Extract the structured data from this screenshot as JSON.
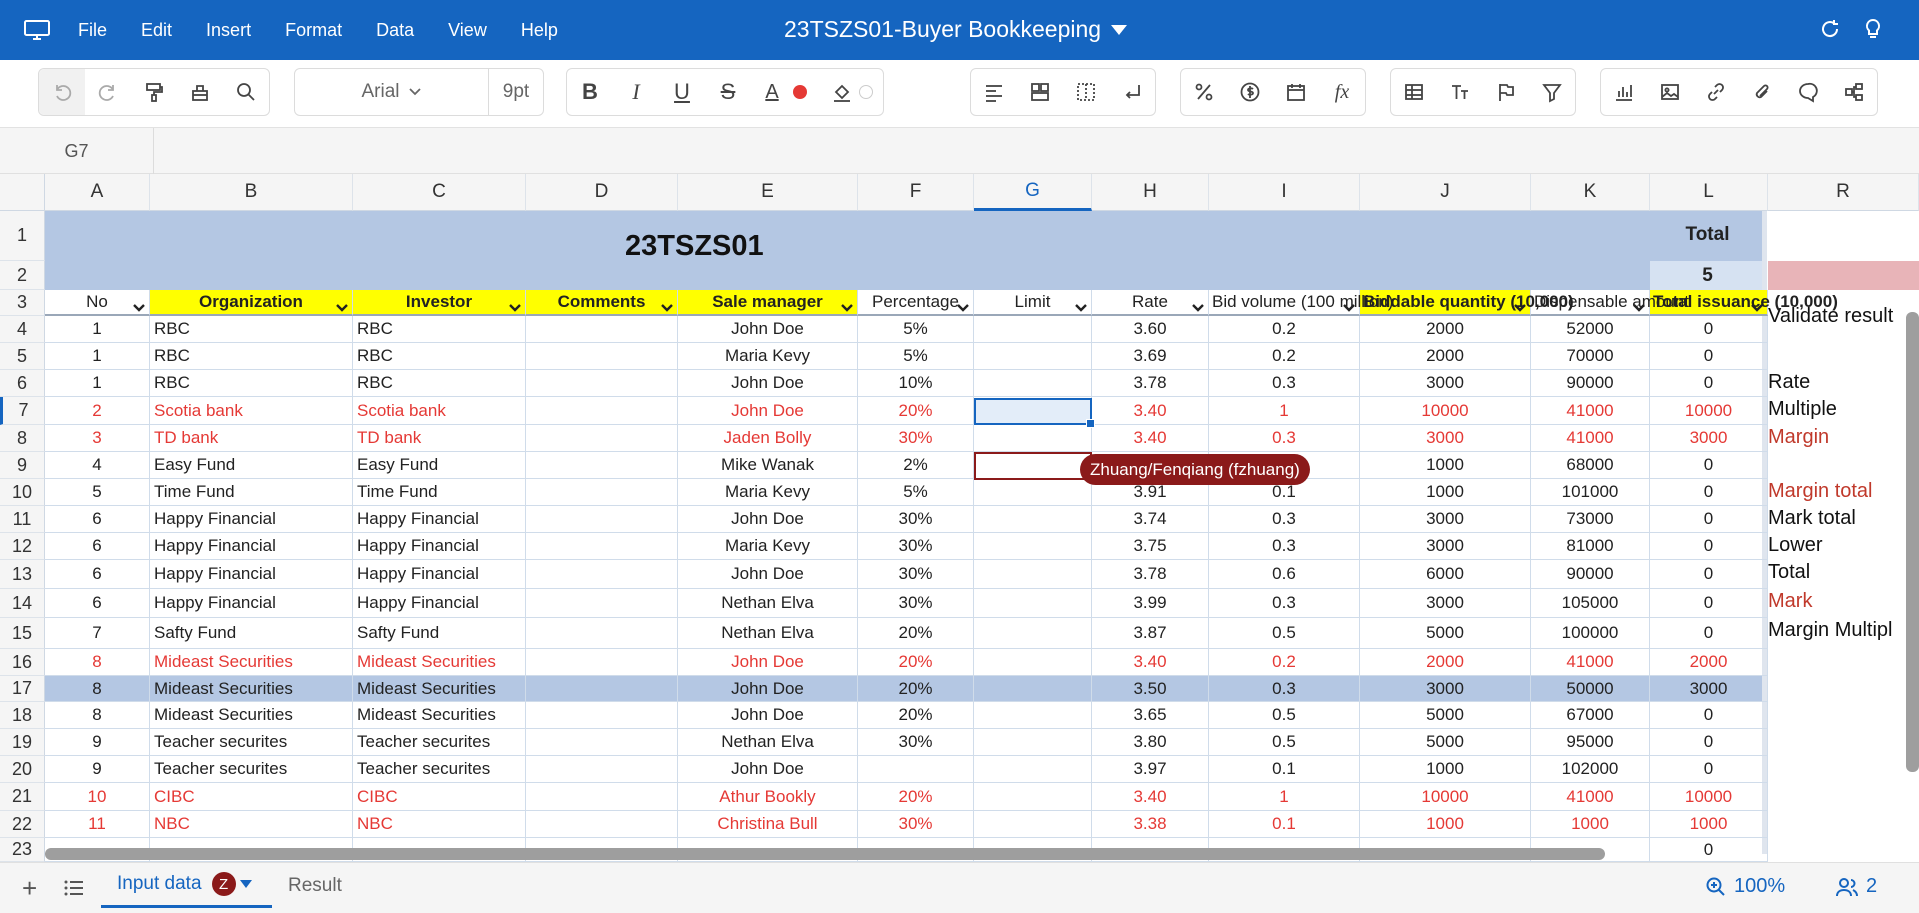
{
  "app": {
    "title": "23TSZS01-Buyer Bookkeeping",
    "menu": [
      "File",
      "Edit",
      "Insert",
      "Format",
      "Data",
      "View",
      "Help"
    ]
  },
  "toolbar": {
    "font_name": "Arial",
    "font_size": "9pt",
    "icons": [
      "undo-icon",
      "redo-icon",
      "format-painter-icon",
      "clear-format-icon",
      "search-icon",
      "bold-icon",
      "italic-icon",
      "underline-icon",
      "strikethrough-icon",
      "font-color-icon",
      "fill-color-icon",
      "align-icon",
      "merge-icon",
      "border-icon",
      "wrap-icon",
      "percent-icon",
      "currency-icon",
      "date-icon",
      "function-icon",
      "table-icon",
      "text-style-icon",
      "flag-icon",
      "filter-icon",
      "chart-icon",
      "image-icon",
      "link-icon",
      "attachment-icon",
      "comment-icon",
      "diagram-icon"
    ],
    "font_color": "#e53935",
    "bold_label": "B",
    "italic_label": "I",
    "underline_label": "U",
    "strike_label": "S",
    "fontcolor_label": "A",
    "fx_label": "fx"
  },
  "namebox": "G7",
  "columns": [
    "A",
    "B",
    "C",
    "D",
    "E",
    "F",
    "G",
    "H",
    "I",
    "J",
    "K",
    "L",
    "R"
  ],
  "row_numbers": [
    "1",
    "2",
    "3",
    "4",
    "5",
    "6",
    "7",
    "8",
    "9",
    "10",
    "11",
    "12",
    "13",
    "14",
    "15",
    "16",
    "17",
    "18",
    "19",
    "20",
    "21",
    "22",
    "23"
  ],
  "sheet": {
    "title": "23TSZS01",
    "total_label": "Total",
    "total_value": "5",
    "headers": [
      "No",
      "Organization",
      "Investor",
      "Comments",
      "Sale manager",
      "Percentage",
      "Limit",
      "Rate",
      "Bid volume (100 million)",
      "Biddable quantity (10,000)",
      "Dispensable amount",
      "Total issuance (10,000)"
    ],
    "rows": [
      {
        "no": "1",
        "org": "RBC",
        "inv": "RBC",
        "cm": "",
        "sm": "John Doe",
        "pct": "5%",
        "lim": "",
        "rate": "3.60",
        "bid": "0.2",
        "bq": "2000",
        "da": "52000",
        "ti": "0",
        "red": false
      },
      {
        "no": "1",
        "org": "RBC",
        "inv": "RBC",
        "cm": "",
        "sm": "Maria Kevy",
        "pct": "5%",
        "lim": "",
        "rate": "3.69",
        "bid": "0.2",
        "bq": "2000",
        "da": "70000",
        "ti": "0",
        "red": false
      },
      {
        "no": "1",
        "org": "RBC",
        "inv": "RBC",
        "cm": "",
        "sm": "John Doe",
        "pct": "10%",
        "lim": "",
        "rate": "3.78",
        "bid": "0.3",
        "bq": "3000",
        "da": "90000",
        "ti": "0",
        "red": false
      },
      {
        "no": "2",
        "org": "Scotia bank",
        "inv": "Scotia bank",
        "cm": "",
        "sm": "John Doe",
        "pct": "20%",
        "lim": "",
        "rate": "3.40",
        "bid": "1",
        "bq": "10000",
        "da": "41000",
        "ti": "10000",
        "red": true
      },
      {
        "no": "3",
        "org": "TD bank",
        "inv": "TD bank",
        "cm": "",
        "sm": "Jaden Bolly",
        "pct": "30%",
        "lim": "",
        "rate": "3.40",
        "bid": "0.3",
        "bq": "3000",
        "da": "41000",
        "ti": "3000",
        "red": true
      },
      {
        "no": "4",
        "org": "Easy Fund",
        "inv": "Easy Fund",
        "cm": "",
        "sm": "Mike Wanak",
        "pct": "2%",
        "lim": "",
        "rate": "",
        "bid": "",
        "bq": "1000",
        "da": "68000",
        "ti": "0",
        "red": false
      },
      {
        "no": "5",
        "org": "Time Fund",
        "inv": "Time Fund",
        "cm": "",
        "sm": "Maria Kevy",
        "pct": "5%",
        "lim": "",
        "rate": "3.91",
        "bid": "0.1",
        "bq": "1000",
        "da": "101000",
        "ti": "0",
        "red": false
      },
      {
        "no": "6",
        "org": "Happy Financial",
        "inv": "Happy Financial",
        "cm": "",
        "sm": "John Doe",
        "pct": "30%",
        "lim": "",
        "rate": "3.74",
        "bid": "0.3",
        "bq": "3000",
        "da": "73000",
        "ti": "0",
        "red": false
      },
      {
        "no": "6",
        "org": "Happy Financial",
        "inv": "Happy Financial",
        "cm": "",
        "sm": "Maria Kevy",
        "pct": "30%",
        "lim": "",
        "rate": "3.75",
        "bid": "0.3",
        "bq": "3000",
        "da": "81000",
        "ti": "0",
        "red": false
      },
      {
        "no": "6",
        "org": "Happy Financial",
        "inv": "Happy Financial",
        "cm": "",
        "sm": "John Doe",
        "pct": "30%",
        "lim": "",
        "rate": "3.78",
        "bid": "0.6",
        "bq": "6000",
        "da": "90000",
        "ti": "0",
        "red": false
      },
      {
        "no": "6",
        "org": "Happy Financial",
        "inv": "Happy Financial",
        "cm": "",
        "sm": "Nethan Elva",
        "pct": "30%",
        "lim": "",
        "rate": "3.99",
        "bid": "0.3",
        "bq": "3000",
        "da": "105000",
        "ti": "0",
        "red": false
      },
      {
        "no": "7",
        "org": "Safty Fund",
        "inv": "Safty Fund",
        "cm": "",
        "sm": "Nethan Elva",
        "pct": "20%",
        "lim": "",
        "rate": "3.87",
        "bid": "0.5",
        "bq": "5000",
        "da": "100000",
        "ti": "0",
        "red": false
      },
      {
        "no": "8",
        "org": "Mideast Securities",
        "inv": "Mideast Securities",
        "cm": "",
        "sm": "John Doe",
        "pct": "20%",
        "lim": "",
        "rate": "3.40",
        "bid": "0.2",
        "bq": "2000",
        "da": "41000",
        "ti": "2000",
        "red": true
      },
      {
        "no": "8",
        "org": "Mideast Securities",
        "inv": "Mideast Securities",
        "cm": "",
        "sm": "John Doe",
        "pct": "20%",
        "lim": "",
        "rate": "3.50",
        "bid": "0.3",
        "bq": "3000",
        "da": "50000",
        "ti": "3000",
        "red": false
      },
      {
        "no": "8",
        "org": "Mideast Securities",
        "inv": "Mideast Securities",
        "cm": "",
        "sm": "John Doe",
        "pct": "20%",
        "lim": "",
        "rate": "3.65",
        "bid": "0.5",
        "bq": "5000",
        "da": "67000",
        "ti": "0",
        "red": false
      },
      {
        "no": "9",
        "org": "Teacher securites",
        "inv": "Teacher securites",
        "cm": "",
        "sm": "Nethan Elva",
        "pct": "30%",
        "lim": "",
        "rate": "3.80",
        "bid": "0.5",
        "bq": "5000",
        "da": "95000",
        "ti": "0",
        "red": false
      },
      {
        "no": "9",
        "org": "Teacher securites",
        "inv": "Teacher securites",
        "cm": "",
        "sm": "John Doe",
        "pct": "",
        "lim": "",
        "rate": "3.97",
        "bid": "0.1",
        "bq": "1000",
        "da": "102000",
        "ti": "0",
        "red": false
      },
      {
        "no": "10",
        "org": "CIBC",
        "inv": "CIBC",
        "cm": "",
        "sm": "Athur Bookly",
        "pct": "20%",
        "lim": "",
        "rate": "3.40",
        "bid": "1",
        "bq": "10000",
        "da": "41000",
        "ti": "10000",
        "red": true
      },
      {
        "no": "11",
        "org": "NBC",
        "inv": "NBC",
        "cm": "",
        "sm": "Christina Bull",
        "pct": "30%",
        "lim": "",
        "rate": "3.38",
        "bid": "0.1",
        "bq": "1000",
        "da": "1000",
        "ti": "1000",
        "red": true
      },
      {
        "no": "",
        "org": "",
        "inv": "",
        "cm": "",
        "sm": "",
        "pct": "",
        "lim": "",
        "rate": "",
        "bid": "",
        "bq": "",
        "da": "",
        "ti": "0",
        "red": false
      }
    ],
    "r_column": [
      {
        "text": "Validate result",
        "red": false
      },
      {
        "text": "",
        "red": false
      },
      {
        "text": "Rate",
        "red": false
      },
      {
        "text": "Multiple",
        "red": false
      },
      {
        "text": "Margin",
        "red": true
      },
      {
        "text": "",
        "red": false
      },
      {
        "text": "Margin total",
        "red": true
      },
      {
        "text": "Mark total",
        "red": false
      },
      {
        "text": "Lower",
        "red": false
      },
      {
        "text": "Total",
        "red": false
      },
      {
        "text": "Mark",
        "red": true
      },
      {
        "text": "Margin Multipl",
        "red": false
      }
    ]
  },
  "collaborator": "Zhuang/Fenqiang (fzhuang)",
  "tabs": [
    {
      "label": "Input data",
      "badge": "Z"
    },
    {
      "label": "Result"
    }
  ],
  "zoom": "100%",
  "users": "2"
}
